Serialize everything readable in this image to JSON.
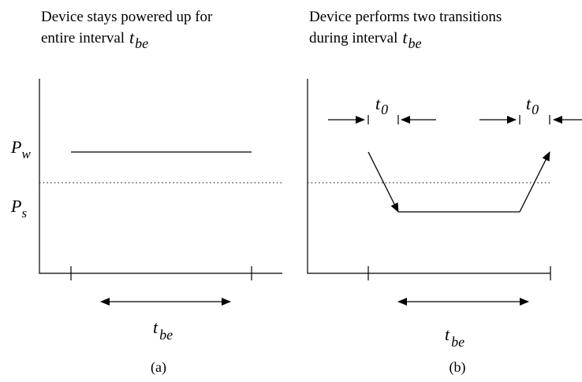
{
  "panel_a": {
    "title_line1": "Device stays powered up for",
    "title_line2_prefix": "entire interval",
    "t_main": "t",
    "t_sub": "be",
    "level_w_main": "P",
    "level_w_sub": "w",
    "level_s_main": "P",
    "level_s_sub": "s",
    "caption": "(a)"
  },
  "panel_b": {
    "title_line1": "Device performs two transitions",
    "title_line2_prefix": "during interval",
    "t_main": "t",
    "t_sub": "be",
    "t0_main": "t",
    "t0_sub": "0",
    "caption": "(b)"
  }
}
